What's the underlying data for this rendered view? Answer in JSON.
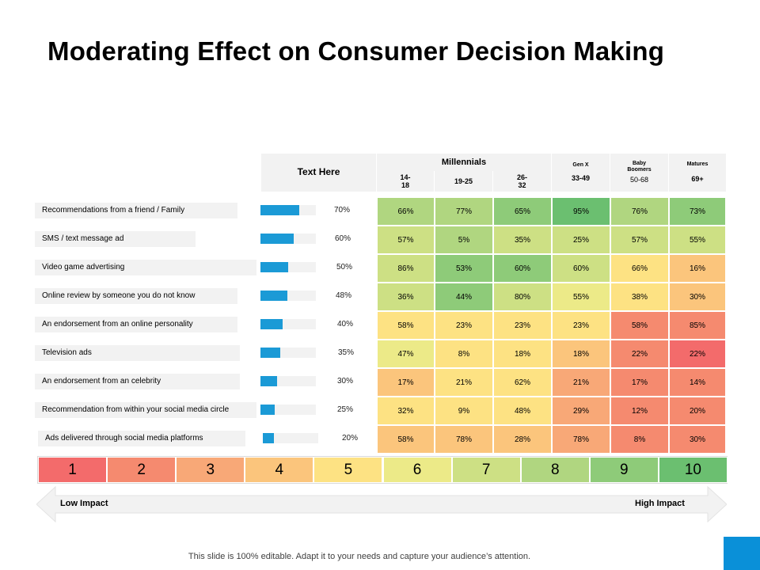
{
  "title": "Moderating Effect on Consumer Decision Making",
  "header": {
    "text_here": "Text Here",
    "millennials": "Millennials",
    "gen_x": "Gen X",
    "baby_boomers": "Baby Boomers",
    "matures": "Matures",
    "age_14_18": "14-\n18",
    "age_19_25": "19-25",
    "age_26_32": "26-\n32",
    "age_33_49": "33-49",
    "age_50_68": "50-68",
    "age_69": "69+"
  },
  "chart_data": {
    "type": "table",
    "title": "Moderating Effect on Consumer Decision Making",
    "columns": [
      "14-18",
      "19-25",
      "26-32",
      "33-49",
      "50-68",
      "69+"
    ],
    "column_groups": [
      "Millennials",
      "Millennials",
      "Millennials",
      "Gen X",
      "Baby Boomers",
      "Matures"
    ],
    "rows": [
      {
        "label": "Recommendations from a friend / Family",
        "overall": 70,
        "overall_label": "70%",
        "values": [
          "66%",
          "77%",
          "65%",
          "95%",
          "76%",
          "73%"
        ],
        "scores": [
          8,
          8,
          9,
          10,
          8,
          9
        ]
      },
      {
        "label": "SMS / text message ad",
        "overall": 60,
        "overall_label": "60%",
        "values": [
          "57%",
          "5%",
          "35%",
          "25%",
          "57%",
          "55%"
        ],
        "scores": [
          7,
          8,
          7,
          7,
          7,
          7
        ]
      },
      {
        "label": "Video game advertising",
        "overall": 50,
        "overall_label": "50%",
        "values": [
          "86%",
          "53%",
          "60%",
          "60%",
          "66%",
          "16%"
        ],
        "scores": [
          7,
          9,
          9,
          7,
          5,
          4
        ]
      },
      {
        "label": "Online review by someone you do not know",
        "overall": 48,
        "overall_label": "48%",
        "values": [
          "36%",
          "44%",
          "80%",
          "55%",
          "38%",
          "30%"
        ],
        "scores": [
          7,
          9,
          7,
          6,
          5,
          4
        ]
      },
      {
        "label": "An endorsement from an online personality",
        "overall": 40,
        "overall_label": "40%",
        "values": [
          "58%",
          "23%",
          "23%",
          "23%",
          "58%",
          "85%"
        ],
        "scores": [
          5,
          5,
          5,
          5,
          2,
          2
        ]
      },
      {
        "label": "Television ads",
        "overall": 35,
        "overall_label": "35%",
        "values": [
          "47%",
          "8%",
          "18%",
          "18%",
          "22%",
          "22%"
        ],
        "scores": [
          6,
          5,
          5,
          4,
          2,
          1
        ]
      },
      {
        "label": "An endorsement from an celebrity",
        "overall": 30,
        "overall_label": "30%",
        "values": [
          "17%",
          "21%",
          "62%",
          "21%",
          "17%",
          "14%"
        ],
        "scores": [
          4,
          5,
          5,
          3,
          2,
          2
        ]
      },
      {
        "label": "Recommendation from within your social media circle",
        "overall": 25,
        "overall_label": "25%",
        "values": [
          "32%",
          "9%",
          "48%",
          "29%",
          "12%",
          "20%"
        ],
        "scores": [
          5,
          5,
          5,
          3,
          2,
          2
        ]
      },
      {
        "label": "Ads delivered through social media platforms",
        "overall": 20,
        "overall_label": "20%",
        "values": [
          "58%",
          "78%",
          "28%",
          "78%",
          "8%",
          "30%"
        ],
        "scores": [
          4,
          4,
          4,
          3,
          2,
          2
        ]
      }
    ],
    "scale": [
      1,
      2,
      3,
      4,
      5,
      6,
      7,
      8,
      9,
      10
    ],
    "scale_low_label": "Low Impact",
    "scale_high_label": "High Impact"
  },
  "scale_labels": [
    "1",
    "2",
    "3",
    "4",
    "5",
    "6",
    "7",
    "8",
    "9",
    "10"
  ],
  "colors": {
    "bar": "#1b9ad6",
    "scale": [
      "#f36b6b",
      "#f58a6f",
      "#f8a877",
      "#fbc57c",
      "#fde283",
      "#ecea88",
      "#cde084",
      "#b0d680",
      "#8ecb79",
      "#6bbf70"
    ]
  },
  "legend": {
    "low": "Low Impact",
    "high": "High Impact"
  },
  "footer": "This slide is 100% editable. Adapt it to your needs and capture your audience’s attention."
}
